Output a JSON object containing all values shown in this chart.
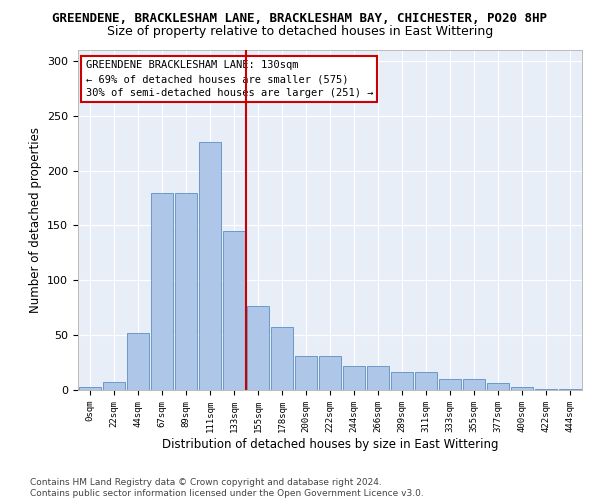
{
  "title1": "GREENDENE, BRACKLESHAM LANE, BRACKLESHAM BAY, CHICHESTER, PO20 8HP",
  "title2": "Size of property relative to detached houses in East Wittering",
  "xlabel": "Distribution of detached houses by size in East Wittering",
  "ylabel": "Number of detached properties",
  "footnote": "Contains HM Land Registry data © Crown copyright and database right 2024.\nContains public sector information licensed under the Open Government Licence v3.0.",
  "bar_labels": [
    "0sqm",
    "22sqm",
    "44sqm",
    "67sqm",
    "89sqm",
    "111sqm",
    "133sqm",
    "155sqm",
    "178sqm",
    "200sqm",
    "222sqm",
    "244sqm",
    "266sqm",
    "289sqm",
    "311sqm",
    "333sqm",
    "355sqm",
    "377sqm",
    "400sqm",
    "422sqm",
    "444sqm"
  ],
  "bar_values": [
    3,
    7,
    52,
    180,
    180,
    226,
    145,
    77,
    57,
    31,
    31,
    22,
    22,
    16,
    16,
    10,
    10,
    6,
    3,
    1,
    1
  ],
  "bar_color": "#aec6e8",
  "bar_edge_color": "#5a8fc2",
  "vline_x": 6.5,
  "vline_color": "#cc0000",
  "annotation_title": "GREENDENE BRACKLESHAM LANE: 130sqm",
  "annotation_line2": "← 69% of detached houses are smaller (575)",
  "annotation_line3": "30% of semi-detached houses are larger (251) →",
  "annotation_box_color": "#cc0000",
  "ylim": [
    0,
    310
  ],
  "title1_fontsize": 9,
  "title2_fontsize": 9,
  "xlabel_fontsize": 8.5,
  "ylabel_fontsize": 8.5,
  "annotation_fontsize": 7.5,
  "footnote_fontsize": 6.5,
  "bg_color": "#e8eef8",
  "fig_bg": "#ffffff",
  "yticks": [
    0,
    50,
    100,
    150,
    200,
    250,
    300
  ]
}
